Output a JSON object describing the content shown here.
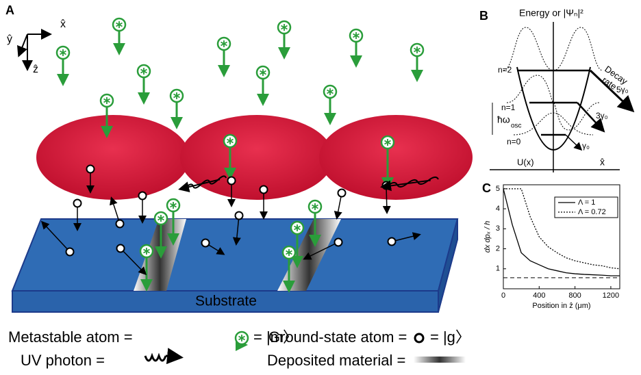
{
  "panel_a": {
    "label": "A",
    "axis_x": "x̂",
    "axis_y": "ŷ",
    "axis_z": "ẑ",
    "substrate": "Substrate",
    "legend": {
      "metastable": "Metastable atom =",
      "metastable_state": "= |m〉",
      "ground": "Ground-state atom =",
      "ground_state": "= |g〉",
      "photon": "UV photon =",
      "deposited": "Deposited material ="
    }
  },
  "panel_b": {
    "label": "B",
    "title": "Energy or |Ψₙ|²",
    "levels": [
      "n=2",
      "n=1",
      "n=0"
    ],
    "hbar_omega": "ħω",
    "osc": "osc",
    "potential": "U(x)",
    "rates": [
      "5γ₀",
      "3γ₀",
      "γ₀"
    ],
    "decay": "Decay",
    "rate": "rate",
    "axis_x": "x̂"
  },
  "panel_c": {
    "label": "C",
    "type": "line",
    "ylabel": "dx dpₓ / h",
    "xlabel": "Position in ẑ (μm)",
    "x": [
      0,
      100,
      200,
      300,
      400,
      500,
      600,
      700,
      800,
      900,
      1000,
      1100,
      1200,
      1300
    ],
    "series": [
      {
        "name": "Λ = 1",
        "color": "#000000",
        "dash": "none",
        "values": [
          5,
          3.2,
          1.8,
          1.4,
          1.2,
          1.0,
          0.9,
          0.8,
          0.75,
          0.72,
          0.7,
          0.68,
          0.65,
          0.65
        ]
      },
      {
        "name": "Λ = 0.72",
        "color": "#000000",
        "dash": "2,2",
        "values": [
          5,
          5,
          5,
          3.6,
          2.6,
          2.1,
          1.8,
          1.55,
          1.4,
          1.3,
          1.2,
          1.15,
          1.05,
          1.0
        ]
      }
    ],
    "reference": 0.55,
    "xlim": [
      0,
      1300
    ],
    "ylim": [
      0,
      5.2
    ],
    "xticks": [
      0,
      400,
      800,
      1200
    ],
    "yticks": [
      1,
      2,
      3,
      4,
      5
    ]
  }
}
